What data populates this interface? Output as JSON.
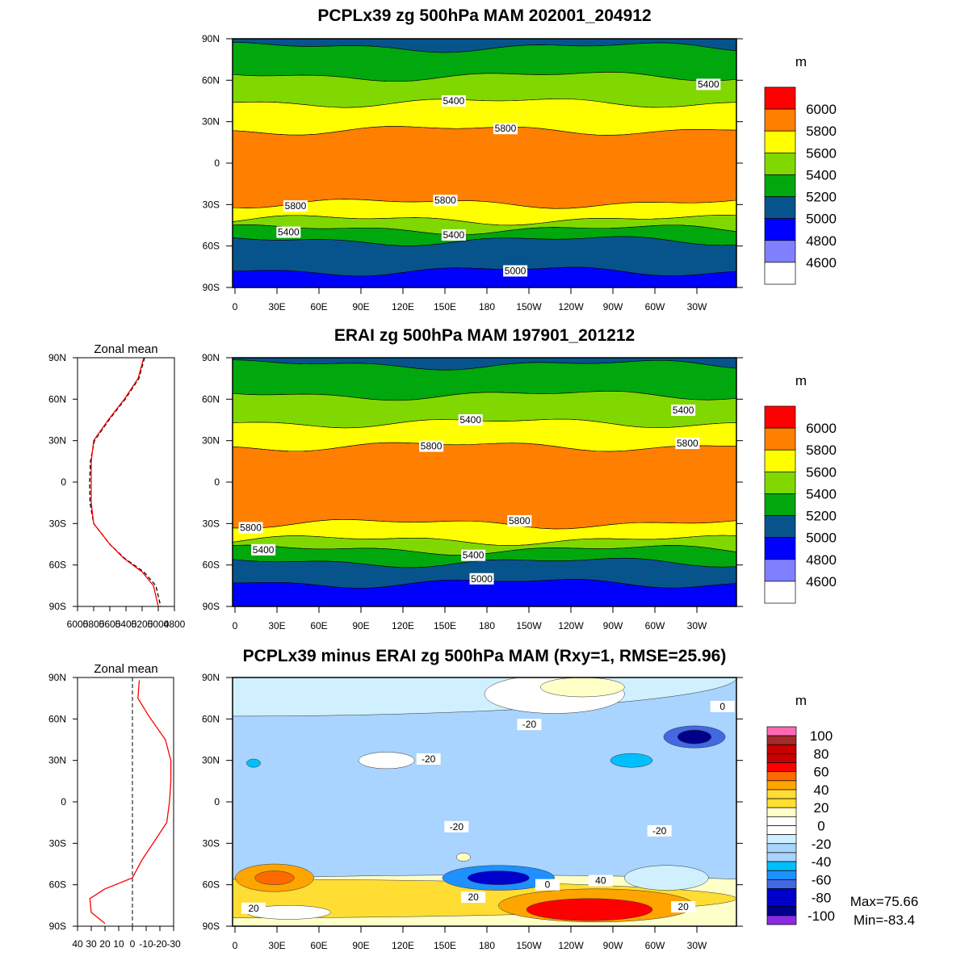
{
  "panels": [
    {
      "title": "PCPLx39 zg 500hPa MAM 202001_204912",
      "units": "m",
      "colorbar": {
        "labels": [
          "6000",
          "5800",
          "5600",
          "5400",
          "5200",
          "5000",
          "4800",
          "4600"
        ],
        "colors": [
          "#ff0000",
          "#ff7f00",
          "#ffff00",
          "#80d800",
          "#00a80e",
          "#07548c",
          "#0000ff",
          "#8080ff",
          "#ffffff"
        ]
      },
      "bands": [
        {
          "level": "5000",
          "color": "#07548c",
          "from": 90,
          "to": 84
        },
        {
          "level": "5200",
          "color": "#00a80e",
          "from": 84,
          "to": 63
        },
        {
          "level": "5400",
          "color": "#80d800",
          "from": 63,
          "to": 44
        },
        {
          "level": "5600",
          "color": "#ffff00",
          "from": 44,
          "to": 24
        },
        {
          "level": "5800",
          "color": "#ff7f00",
          "from": 24,
          "to": -29
        },
        {
          "level": "5600",
          "color": "#ffff00",
          "from": -29,
          "to": -41
        },
        {
          "level": "5400",
          "color": "#80d800",
          "from": -41,
          "to": -48
        },
        {
          "level": "5200",
          "color": "#00a80e",
          "from": -48,
          "to": -56
        },
        {
          "level": "5000",
          "color": "#07548c",
          "from": -56,
          "to": -78
        },
        {
          "level": "4800",
          "color": "#0000ff",
          "from": -78,
          "to": -90
        }
      ],
      "contour_labels": [
        {
          "text": "5400",
          "lon": 158,
          "lat": 45
        },
        {
          "text": "5800",
          "lon": 195,
          "lat": 25
        },
        {
          "text": "5400",
          "lon": 340,
          "lat": 57
        },
        {
          "text": "5800",
          "lon": 45,
          "lat": -31
        },
        {
          "text": "5800",
          "lon": 152,
          "lat": -27
        },
        {
          "text": "5400",
          "lon": 40,
          "lat": -50
        },
        {
          "text": "5400",
          "lon": 158,
          "lat": -52
        },
        {
          "text": "5000",
          "lon": 202,
          "lat": -78
        }
      ]
    },
    {
      "title": "ERAI zg 500hPa MAM 197901_201212",
      "units": "m",
      "colorbar": {
        "labels": [
          "6000",
          "5800",
          "5600",
          "5400",
          "5200",
          "5000",
          "4800",
          "4600"
        ],
        "colors": [
          "#ff0000",
          "#ff7f00",
          "#ffff00",
          "#80d800",
          "#00a80e",
          "#07548c",
          "#0000ff",
          "#8080ff",
          "#ffffff"
        ]
      },
      "bands": [
        {
          "level": "5000",
          "color": "#07548c",
          "from": 90,
          "to": 85
        },
        {
          "level": "5200",
          "color": "#00a80e",
          "from": 85,
          "to": 63
        },
        {
          "level": "5400",
          "color": "#80d800",
          "from": 63,
          "to": 43
        },
        {
          "level": "5600",
          "color": "#ffff00",
          "from": 43,
          "to": 26
        },
        {
          "level": "5800",
          "color": "#ff7f00",
          "from": 26,
          "to": -30
        },
        {
          "level": "5600",
          "color": "#ffff00",
          "from": -30,
          "to": -42
        },
        {
          "level": "5400",
          "color": "#80d800",
          "from": -42,
          "to": -49
        },
        {
          "level": "5200",
          "color": "#00a80e",
          "from": -49,
          "to": -58
        },
        {
          "level": "5000",
          "color": "#07548c",
          "from": -58,
          "to": -73
        },
        {
          "level": "4800",
          "color": "#0000ff",
          "from": -73,
          "to": -90
        }
      ],
      "contour_labels": [
        {
          "text": "5400",
          "lon": 170,
          "lat": 45
        },
        {
          "text": "5800",
          "lon": 142,
          "lat": 26
        },
        {
          "text": "5400",
          "lon": 322,
          "lat": 52
        },
        {
          "text": "5800",
          "lon": 325,
          "lat": 28
        },
        {
          "text": "5800",
          "lon": 13,
          "lat": -33
        },
        {
          "text": "5800",
          "lon": 205,
          "lat": -28
        },
        {
          "text": "5400",
          "lon": 22,
          "lat": -49
        },
        {
          "text": "5400",
          "lon": 172,
          "lat": -53
        },
        {
          "text": "5000",
          "lon": 178,
          "lat": -70
        }
      ],
      "zonal_mean": {
        "title": "Zonal mean",
        "xticks": [
          "6000",
          "5800",
          "5600",
          "5400",
          "5200",
          "5000",
          "4800"
        ],
        "xlim": [
          6000,
          4800
        ],
        "model": [
          [
            90,
            5180
          ],
          [
            75,
            5250
          ],
          [
            60,
            5420
          ],
          [
            45,
            5620
          ],
          [
            30,
            5800
          ],
          [
            15,
            5830
          ],
          [
            0,
            5830
          ],
          [
            -15,
            5830
          ],
          [
            -30,
            5800
          ],
          [
            -45,
            5600
          ],
          [
            -55,
            5430
          ],
          [
            -65,
            5200
          ],
          [
            -75,
            5060
          ],
          [
            -90,
            5000
          ]
        ],
        "obs": [
          [
            90,
            5170
          ],
          [
            75,
            5240
          ],
          [
            60,
            5410
          ],
          [
            45,
            5610
          ],
          [
            30,
            5790
          ],
          [
            15,
            5840
          ],
          [
            0,
            5850
          ],
          [
            -15,
            5845
          ],
          [
            -30,
            5800
          ],
          [
            -45,
            5600
          ],
          [
            -55,
            5420
          ],
          [
            -65,
            5180
          ],
          [
            -75,
            5030
          ],
          [
            -90,
            4970
          ]
        ]
      }
    },
    {
      "title": "PCPLx39 minus ERAI zg 500hPa MAM (Rxy=1, RMSE=25.96)",
      "units": "m",
      "colorbar": {
        "labels": [
          "100",
          "80",
          "60",
          "40",
          "20",
          "0",
          "-20",
          "-40",
          "-60",
          "-80",
          "-100"
        ],
        "colors": [
          "#ff69b4",
          "#a52a2a",
          "#c80000",
          "#c80000",
          "#ff0000",
          "#ff6a00",
          "#ffa500",
          "#ffdd33",
          "#ffdd33",
          "#ffffc8",
          "#ffffff",
          "#ffffff",
          "#d0f0ff",
          "#a8d4ff",
          "#a8d4ff",
          "#00bfff",
          "#1e90ff",
          "#4169e1",
          "#0000cd",
          "#0000cd",
          "#00008b",
          "#8a2be2"
        ]
      },
      "stats": {
        "max": "Max=75.66",
        "min": "Min=-83.4"
      },
      "contour_labels": [
        {
          "text": "-20",
          "lon": 212,
          "lat": 56
        },
        {
          "text": "-20",
          "lon": 140,
          "lat": 31
        },
        {
          "text": "-20",
          "lon": 160,
          "lat": -18
        },
        {
          "text": "-20",
          "lon": 305,
          "lat": -21
        },
        {
          "text": "0",
          "lon": 350,
          "lat": 69
        },
        {
          "text": "0",
          "lon": 225,
          "lat": -60
        },
        {
          "text": "40",
          "lon": 263,
          "lat": -57
        },
        {
          "text": "20",
          "lon": 172,
          "lat": -69
        },
        {
          "text": "20",
          "lon": 15,
          "lat": -77
        },
        {
          "text": "20",
          "lon": 322,
          "lat": -76
        }
      ],
      "zonal_mean": {
        "title": "Zonal mean",
        "xticks": [
          "40",
          "30",
          "20",
          "10",
          "0",
          "-10",
          "-20",
          "-30"
        ],
        "xlim": [
          40,
          -30
        ],
        "diff": [
          [
            88,
            -5
          ],
          [
            75,
            -4
          ],
          [
            62,
            -12
          ],
          [
            45,
            -24
          ],
          [
            30,
            -28
          ],
          [
            15,
            -28
          ],
          [
            0,
            -27
          ],
          [
            -15,
            -25
          ],
          [
            -30,
            -15
          ],
          [
            -42,
            -7
          ],
          [
            -55,
            0
          ],
          [
            -63,
            20
          ],
          [
            -70,
            31
          ],
          [
            -80,
            30
          ],
          [
            -88,
            20
          ]
        ]
      }
    }
  ],
  "axes": {
    "lat_labels": [
      "90N",
      "60N",
      "30N",
      "0",
      "30S",
      "60S",
      "90S"
    ],
    "lon_labels": [
      "0",
      "30E",
      "60E",
      "90E",
      "120E",
      "150E",
      "180",
      "150W",
      "120W",
      "90W",
      "60W",
      "30W"
    ]
  }
}
